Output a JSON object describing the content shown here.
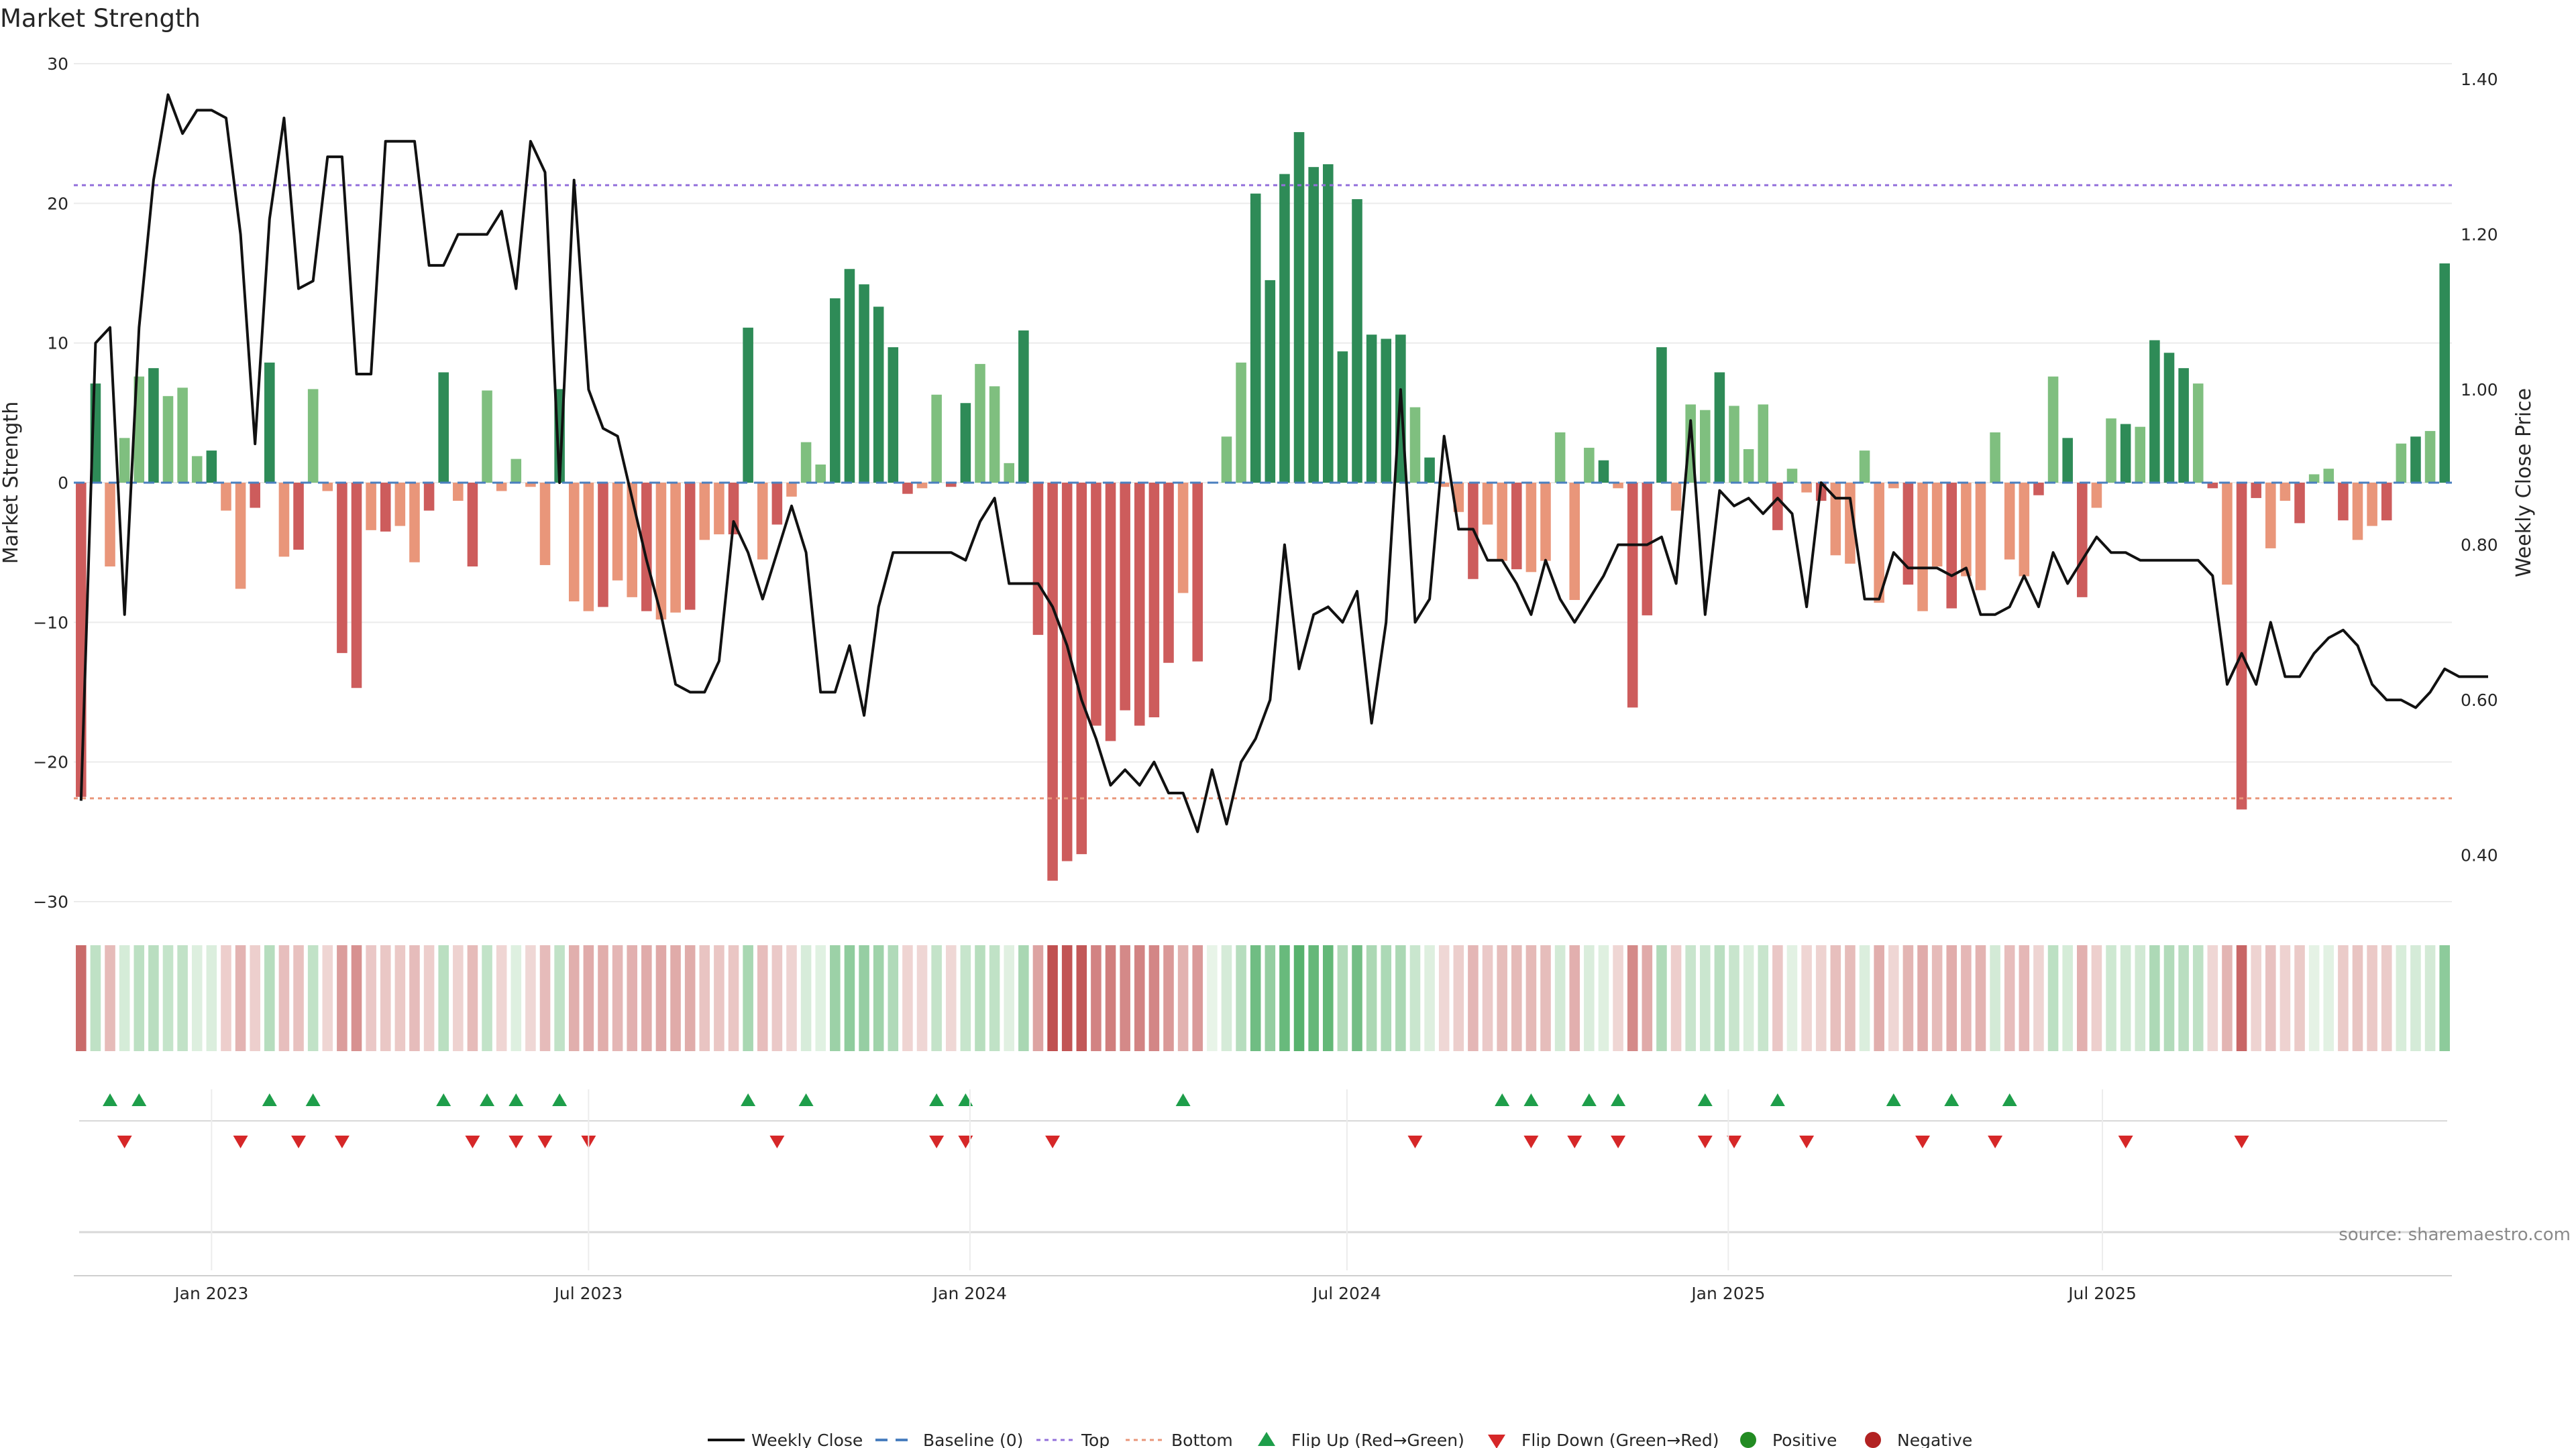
{
  "chart_data": {
    "type": "bar",
    "title": "Market Strength",
    "ylabel_left": "Market Strength",
    "ylabel_right": "Weekly Close Price",
    "ylim_left": [
      -30,
      30
    ],
    "ylim_right": [
      0.34,
      1.42
    ],
    "yticks_left": [
      "30",
      "20",
      "10",
      "0",
      "−10",
      "−20",
      "−30"
    ],
    "yticks_right": [
      "1.40",
      "1.20",
      "1.00",
      "0.80",
      "0.60",
      "0.40"
    ],
    "x_ticks": [
      {
        "label": "Jan 2023",
        "week": 9
      },
      {
        "label": "Jul 2023",
        "week": 35
      },
      {
        "label": "Jan 2024",
        "week": 61.3
      },
      {
        "label": "Jul 2024",
        "week": 87.3
      },
      {
        "label": "Jan 2025",
        "week": 113.6
      },
      {
        "label": "Jul 2025",
        "week": 139.4
      }
    ],
    "top_line": 21.3,
    "bottom_line": -22.6,
    "strength": [
      -22.5,
      7.1,
      -6,
      3.2,
      7.6,
      8.2,
      6.2,
      6.8,
      1.9,
      2.3,
      -2,
      -7.6,
      -1.8,
      8.6,
      -5.3,
      -4.8,
      6.7,
      -0.6,
      -12.2,
      -14.7,
      -3.4,
      -3.5,
      -3.1,
      -5.7,
      -2,
      7.9,
      -1.3,
      -6,
      6.6,
      -0.6,
      1.7,
      -0.3,
      -5.9,
      6.7,
      -8.5,
      -9.2,
      -8.9,
      -7,
      -8.2,
      -9.2,
      -9.8,
      -9.3,
      -9.1,
      -4.1,
      -3.7,
      -3.7,
      11.1,
      -5.5,
      -3,
      -1,
      2.9,
      1.3,
      13.2,
      15.3,
      14.2,
      12.6,
      9.7,
      -0.8,
      -0.4,
      6.3,
      -0.3,
      5.7,
      8.5,
      6.9,
      1.4,
      10.9,
      -10.9,
      -28.5,
      -27.1,
      -26.6,
      -17.4,
      -18.5,
      -16.3,
      -17.4,
      -16.8,
      -12.9,
      -7.9,
      -12.8,
      0,
      3.3,
      8.6,
      20.7,
      14.5,
      22.1,
      25.1,
      22.6,
      22.8,
      9.4,
      20.3,
      10.6,
      10.3,
      10.6,
      5.4,
      1.8,
      -0.3,
      -2.1,
      -6.9,
      -3,
      -5.6,
      -6.2,
      -6.4,
      -5.6,
      3.6,
      -8.4,
      2.5,
      1.6,
      -0.4,
      -16.1,
      -9.5,
      9.7,
      -2,
      5.6,
      5.2,
      7.9,
      5.5,
      2.4,
      5.6,
      -3.4,
      1,
      -0.7,
      -1.3,
      -5.2,
      -5.8,
      2.3,
      -8.6,
      -0.4,
      -7.3,
      -9.2,
      -6,
      -9,
      -6.7,
      -7.7,
      3.6,
      -5.5,
      -6.7,
      -0.9,
      7.6,
      3.2,
      -8.2,
      -1.8,
      4.6,
      4.2,
      4,
      10.2,
      9.3,
      8.2,
      7.1,
      -0.4,
      -7.3,
      -23.4,
      -1.1,
      -4.7,
      -1.3,
      -2.9,
      0.6,
      1,
      -2.7,
      -4.1,
      -3.1,
      -2.7,
      2.8,
      3.3,
      3.7,
      15.7
    ],
    "price": [
      0.47,
      1.06,
      1.08,
      0.71,
      1.08,
      1.27,
      1.38,
      1.33,
      1.36,
      1.36,
      1.35,
      1.2,
      0.93,
      1.22,
      1.35,
      1.13,
      1.14,
      1.3,
      1.3,
      1.02,
      1.02,
      1.32,
      1.32,
      1.32,
      1.16,
      1.16,
      1.2,
      1.2,
      1.2,
      1.23,
      1.13,
      1.32,
      1.28,
      0.88,
      1.27,
      1.0,
      0.95,
      0.94,
      0.86,
      0.78,
      0.71,
      0.62,
      0.61,
      0.61,
      0.65,
      0.83,
      0.79,
      0.73,
      0.79,
      0.85,
      0.79,
      0.61,
      0.61,
      0.67,
      0.58,
      0.72,
      0.79,
      0.79,
      0.79,
      0.79,
      0.79,
      0.78,
      0.83,
      0.86,
      0.75,
      0.75,
      0.75,
      0.72,
      0.67,
      0.6,
      0.55,
      0.49,
      0.51,
      0.49,
      0.52,
      0.48,
      0.48,
      0.43,
      0.51,
      0.44,
      0.52,
      0.55,
      0.6,
      0.8,
      0.64,
      0.71,
      0.72,
      0.7,
      0.74,
      0.57,
      0.7,
      1.0,
      0.7,
      0.73,
      0.94,
      0.82,
      0.82,
      0.78,
      0.78,
      0.75,
      0.71,
      0.78,
      0.73,
      0.7,
      0.73,
      0.76,
      0.8,
      0.8,
      0.8,
      0.81,
      0.75,
      0.96,
      0.71,
      0.87,
      0.85,
      0.86,
      0.84,
      0.86,
      0.84,
      0.72,
      0.88,
      0.86,
      0.86,
      0.73,
      0.73,
      0.79,
      0.77,
      0.77,
      0.77,
      0.76,
      0.77,
      0.71,
      0.71,
      0.72,
      0.76,
      0.72,
      0.79,
      0.75,
      0.78,
      0.81,
      0.79,
      0.79,
      0.78,
      0.78,
      0.78,
      0.78,
      0.78,
      0.76,
      0.62,
      0.66,
      0.62,
      0.7,
      0.63,
      0.63,
      0.66,
      0.68,
      0.69,
      0.67,
      0.62,
      0.6,
      0.6,
      0.59,
      0.61,
      0.64,
      0.63,
      0.63,
      0.63
    ],
    "flip_up_weeks": [
      2,
      4,
      13,
      16,
      25,
      28,
      30,
      33,
      46,
      50,
      59,
      61,
      76,
      98,
      100,
      104,
      106,
      112,
      117,
      125,
      129,
      133
    ],
    "flip_down_weeks": [
      3,
      11,
      15,
      18,
      27,
      30,
      32,
      35,
      48,
      59,
      61,
      67,
      92,
      100,
      103,
      106,
      112,
      114,
      119,
      127,
      132,
      141,
      149
    ],
    "legend_position": "bottom",
    "legend": {
      "weekly_close": "Weekly Close",
      "baseline": "Baseline (0)",
      "top": "Top",
      "bottom": "Bottom",
      "flip_up": "Flip Up (Red→Green)",
      "flip_down": "Flip Down (Green→Red)",
      "positive": "Positive",
      "negative": "Negative"
    },
    "source": "source: sharemaestro.com"
  },
  "colors": {
    "pos_strong": "#2e8b57",
    "pos_weak": "#7fbf7f",
    "neg_strong": "#cd5c5c",
    "neg_weak": "#e9967a",
    "price_line": "#111111",
    "baseline": "#4a7fbf",
    "top_line": "#9370db",
    "bottom_line": "#e9967a",
    "flip_up": "#1e9e4a",
    "flip_down": "#d62728",
    "positive_dot": "#228b22",
    "negative_dot": "#b22222"
  }
}
